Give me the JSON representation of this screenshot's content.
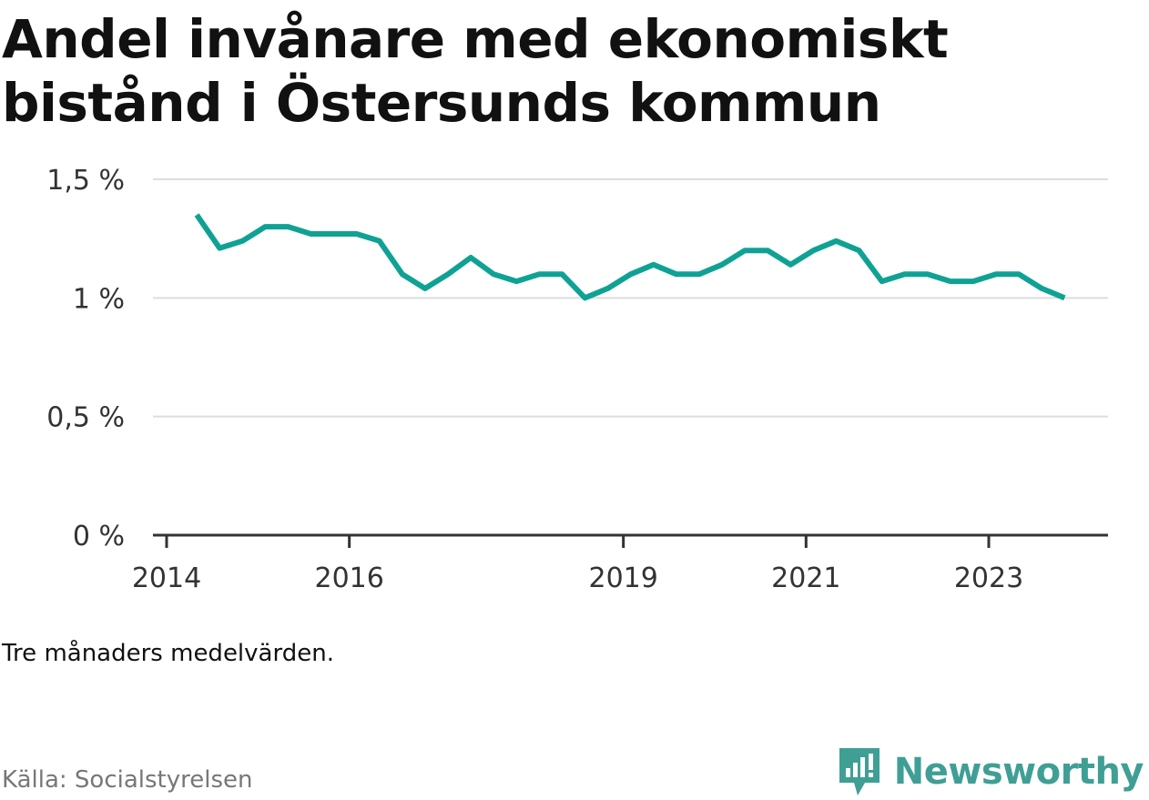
{
  "title": "Andel invånare med ekonomiskt bistånd i Östersunds kommun",
  "note": "Tre månaders medelvärden.",
  "source": "Källa: Socialstyrelsen",
  "brand": {
    "name": "Newsworthy",
    "icon": "newsworthy-logo-icon",
    "color": "#3f9f95"
  },
  "chart_data": {
    "type": "line",
    "title": "Andel invånare med ekonomiskt bistånd i Östersunds kommun",
    "xlabel": "",
    "ylabel": "",
    "y_unit": "%",
    "ylim": [
      0,
      1.5
    ],
    "y_ticks": [
      0,
      0.5,
      1,
      1.5
    ],
    "y_tick_labels": [
      "0 %",
      "0,5 %",
      "1 %",
      "1,5 %"
    ],
    "x_tick_labels": [
      "2014",
      "2016",
      "2019",
      "2021",
      "2023"
    ],
    "x_tick_years": [
      2014,
      2016,
      2019,
      2021,
      2023
    ],
    "grid": true,
    "line_color": "#0fa294",
    "series": [
      {
        "x": [
          2014.33,
          2014.58,
          2014.83,
          2015.08,
          2015.33,
          2015.58,
          2015.83,
          2016.08,
          2016.33,
          2016.58,
          2016.83,
          2017.08,
          2017.33,
          2017.58,
          2017.83,
          2018.08,
          2018.33,
          2018.58,
          2018.83,
          2019.08,
          2019.33,
          2019.58,
          2019.83,
          2020.08,
          2020.33,
          2020.58,
          2020.83,
          2021.08,
          2021.33,
          2021.58,
          2021.83,
          2022.08,
          2022.33,
          2022.58,
          2022.83,
          2023.08,
          2023.33,
          2023.58,
          2023.83
        ],
        "values": [
          1.35,
          1.21,
          1.24,
          1.3,
          1.3,
          1.27,
          1.27,
          1.27,
          1.24,
          1.1,
          1.04,
          1.1,
          1.17,
          1.1,
          1.07,
          1.1,
          1.1,
          1.0,
          1.04,
          1.1,
          1.14,
          1.1,
          1.1,
          1.14,
          1.2,
          1.2,
          1.14,
          1.2,
          1.24,
          1.2,
          1.07,
          1.1,
          1.1,
          1.07,
          1.07,
          1.1,
          1.1,
          1.04,
          1.0
        ]
      }
    ]
  }
}
